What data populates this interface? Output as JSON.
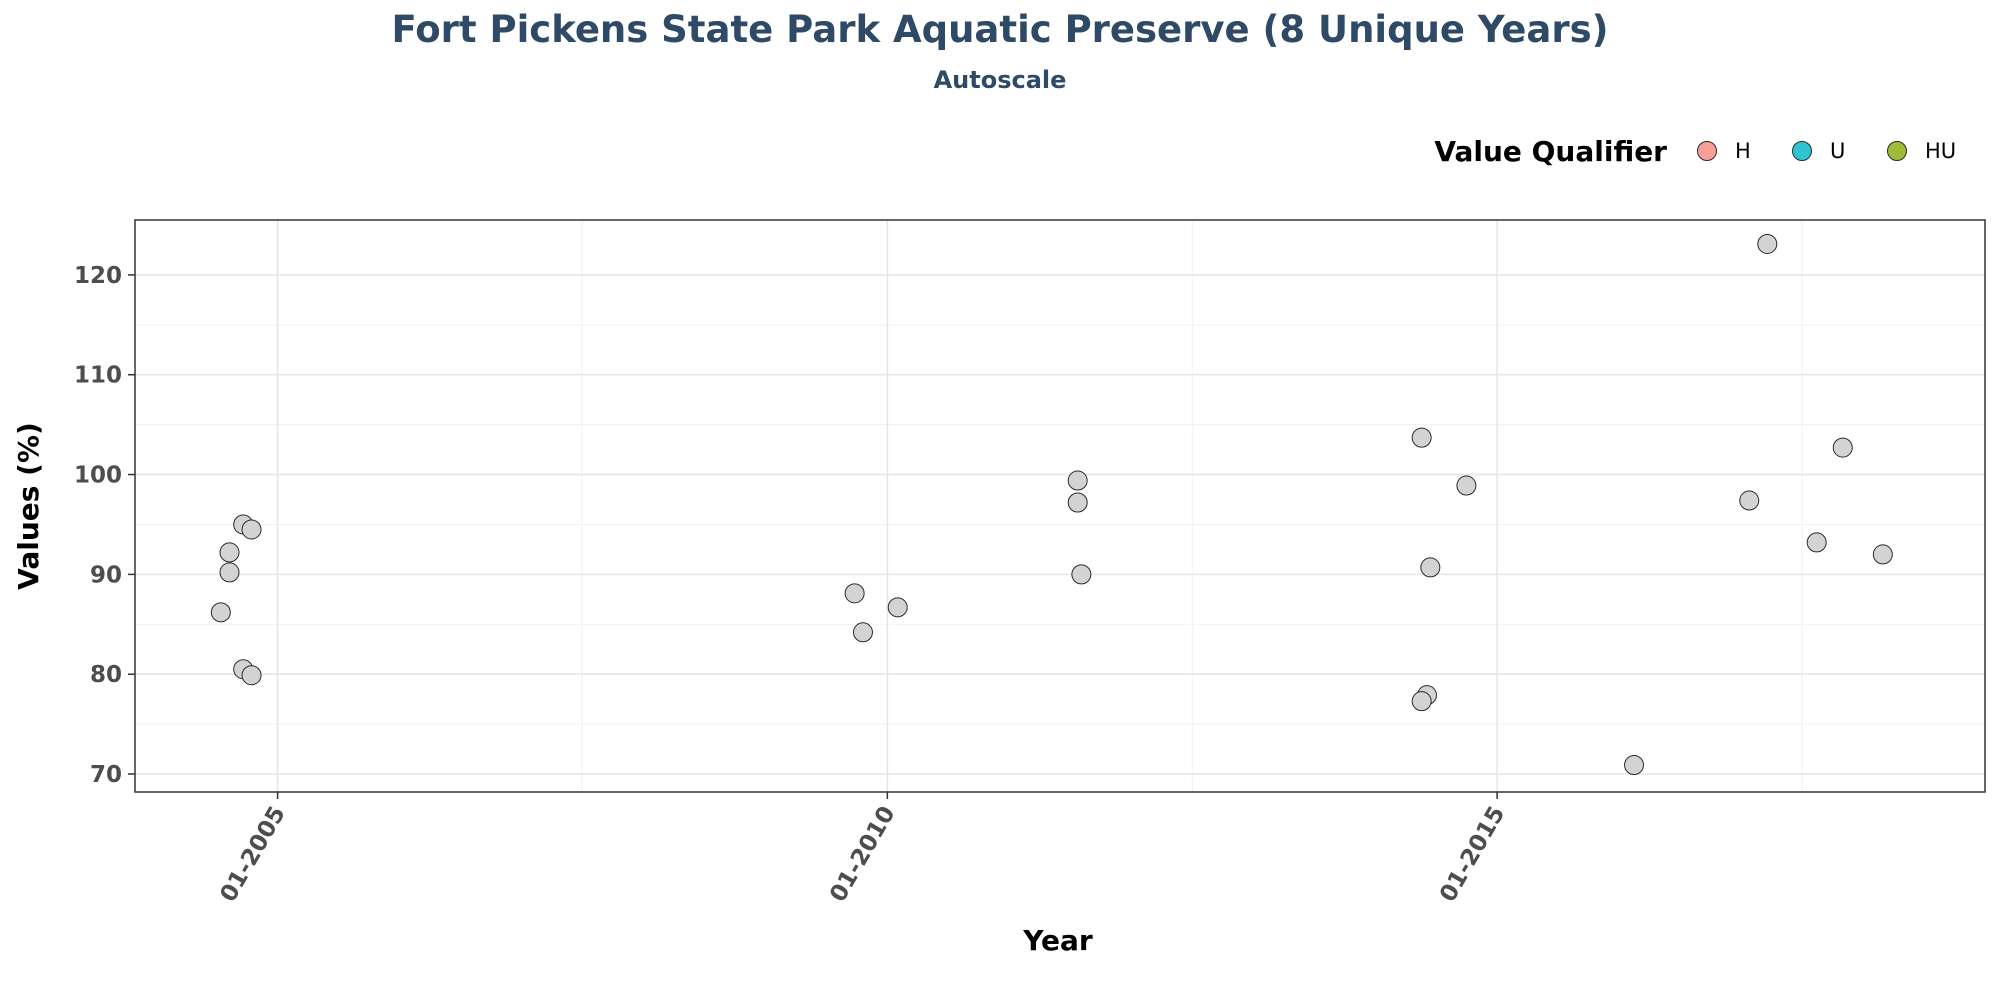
{
  "chart_data": {
    "type": "scatter",
    "title": "Fort Pickens State Park Aquatic Preserve (8 Unique Years)",
    "subtitle": "Autoscale",
    "xlabel": "Year",
    "ylabel": "Values (%)",
    "x_ticks": [
      "01-2005",
      "01-2010",
      "01-2015"
    ],
    "y_ticks": [
      70,
      80,
      90,
      100,
      110,
      120
    ],
    "xlim": [
      "2003-11-01",
      "2019-01-01"
    ],
    "ylim": [
      68.2,
      125.5
    ],
    "grid": true,
    "point_color": "#d3d3d3",
    "legend": {
      "title": "Value Qualifier",
      "position": "top-right",
      "items": [
        {
          "label": "H",
          "color": "#f8a097"
        },
        {
          "label": "U",
          "color": "#2ec4d2"
        },
        {
          "label": "HU",
          "color": "#9cbd3a"
        }
      ]
    },
    "points": [
      {
        "x": "2004-07-15",
        "y": 86.2
      },
      {
        "x": "2004-08-10",
        "y": 90.2
      },
      {
        "x": "2004-08-10",
        "y": 92.2
      },
      {
        "x": "2004-09-20",
        "y": 95.0
      },
      {
        "x": "2004-10-15",
        "y": 94.5
      },
      {
        "x": "2004-09-20",
        "y": 80.5
      },
      {
        "x": "2004-10-15",
        "y": 79.9
      },
      {
        "x": "2009-09-25",
        "y": 88.1
      },
      {
        "x": "2009-10-20",
        "y": 84.2
      },
      {
        "x": "2010-02-01",
        "y": 86.7
      },
      {
        "x": "2011-07-25",
        "y": 99.4
      },
      {
        "x": "2011-07-25",
        "y": 97.2
      },
      {
        "x": "2011-08-05",
        "y": 90.0
      },
      {
        "x": "2014-05-20",
        "y": 103.7
      },
      {
        "x": "2014-10-01",
        "y": 98.9
      },
      {
        "x": "2014-06-15",
        "y": 90.7
      },
      {
        "x": "2014-06-05",
        "y": 77.9
      },
      {
        "x": "2014-05-20",
        "y": 77.3
      },
      {
        "x": "2016-02-15",
        "y": 70.9
      },
      {
        "x": "2017-01-25",
        "y": 97.4
      },
      {
        "x": "2017-03-20",
        "y": 123.1
      },
      {
        "x": "2017-08-15",
        "y": 93.2
      },
      {
        "x": "2017-11-01",
        "y": 102.7
      },
      {
        "x": "2018-03-01",
        "y": 92.0
      }
    ]
  }
}
